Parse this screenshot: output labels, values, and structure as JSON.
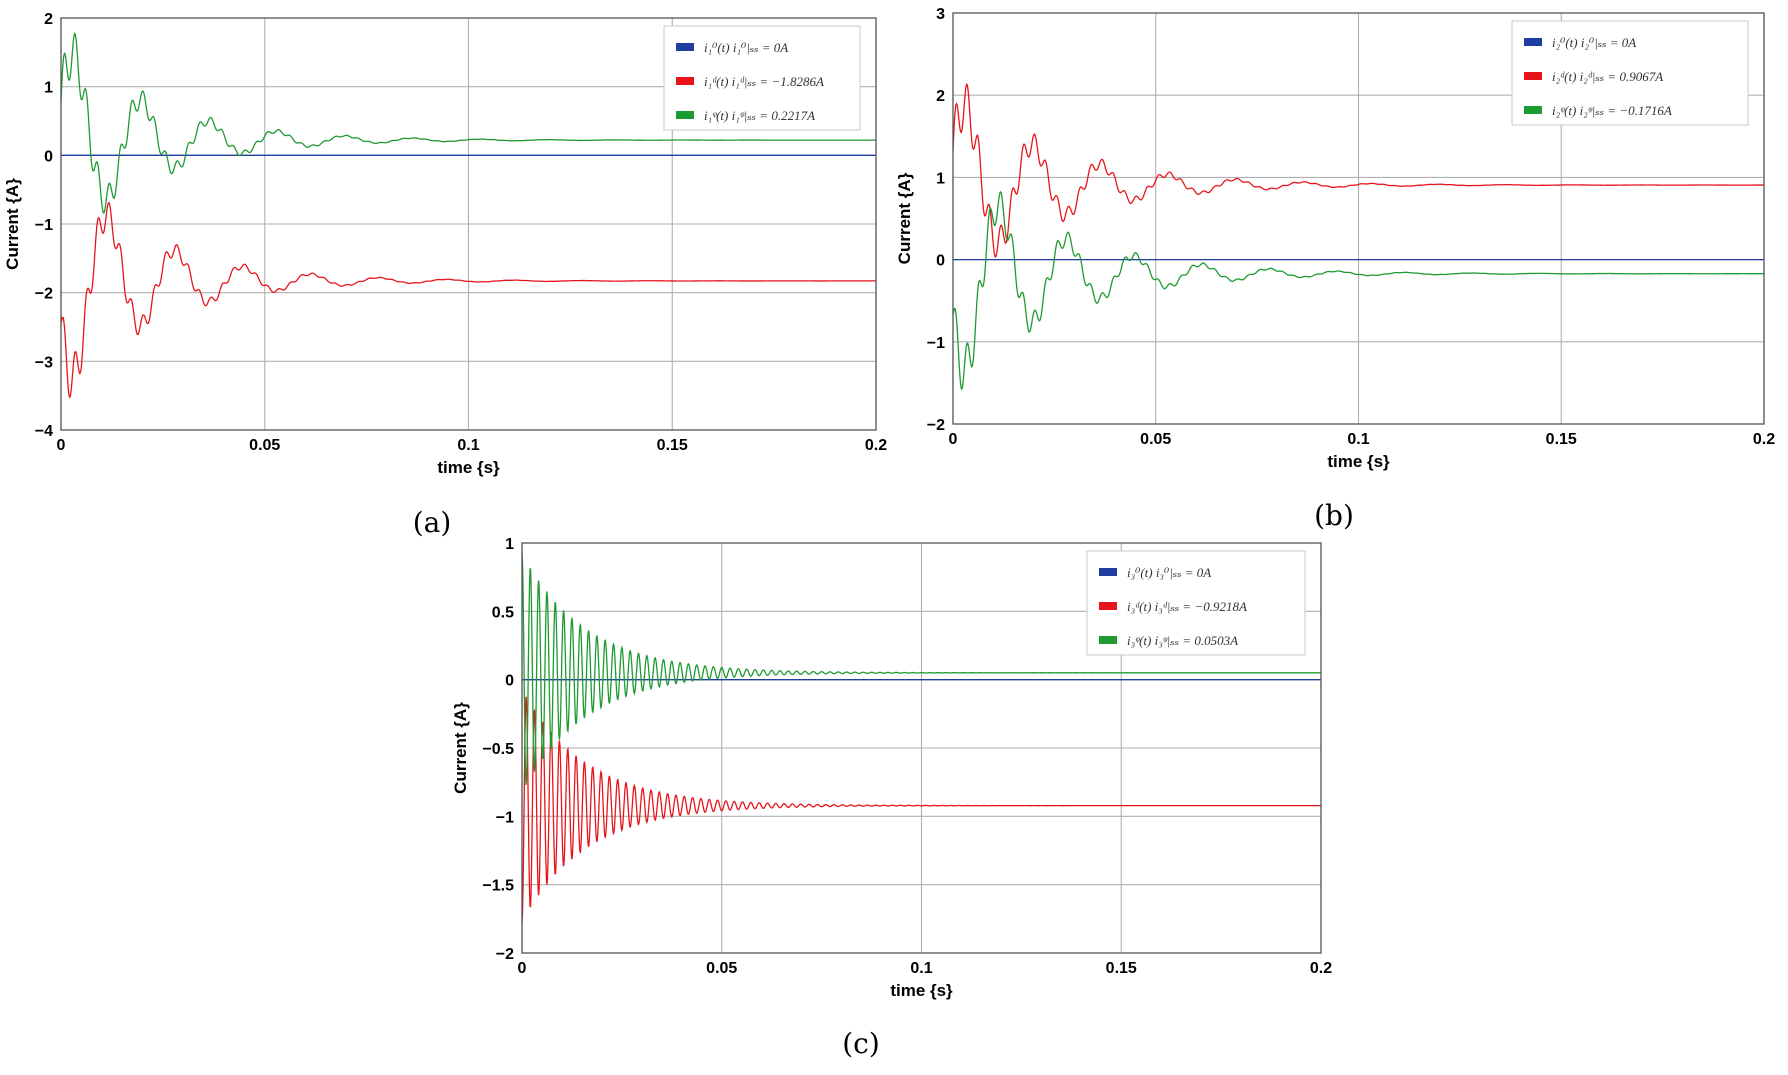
{
  "chart_data": [
    {
      "type": "line",
      "panel": "(a)",
      "title": "",
      "xlabel": "time {s}",
      "ylabel": "Current {A}",
      "xlim": [
        0,
        0.2
      ],
      "ylim": [
        -4,
        2
      ],
      "xticks": [
        0,
        0.05,
        0.1,
        0.15,
        0.2
      ],
      "xtick_labels": [
        "0",
        "0.05",
        "0.1",
        "0.15",
        "0.2"
      ],
      "yticks": [
        -4,
        -3,
        -2,
        -1,
        0,
        1,
        2
      ],
      "ytick_labels": [
        "−4",
        "−3",
        "−2",
        "−1",
        "0",
        "1",
        "2"
      ],
      "grid": true,
      "legend_position": "top-right",
      "series": [
        {
          "name": "i_1^0",
          "legend": "i₁⁰(t)   i₁⁰|ₛₛ = 0A",
          "color": "#1f3fa0",
          "steady": 0,
          "overshoot": 0,
          "settle_tau": 0.02,
          "osc_freq": 60,
          "ripple": 0
        },
        {
          "name": "i_1^d",
          "legend": "i₁ᵈ(t)   i₁ᵈ|ₛₛ = −1.8286A",
          "color": "#e8141c",
          "steady": -1.8286,
          "overshoot": -1.6,
          "settle_tau": 0.022,
          "osc_freq": 60,
          "ripple": 0.38
        },
        {
          "name": "i_1^q",
          "legend": "i₁ᵠ(t)   i₁ᵠ|ₛₛ = 0.2217A",
          "color": "#1e9a32",
          "steady": 0.2217,
          "overshoot": 1.45,
          "settle_tau": 0.022,
          "osc_freq": 60,
          "ripple": 0.38
        }
      ]
    },
    {
      "type": "line",
      "panel": "(b)",
      "title": "",
      "xlabel": "time {s}",
      "ylabel": "Current {A}",
      "xlim": [
        0,
        0.2
      ],
      "ylim": [
        -2,
        3
      ],
      "xticks": [
        0,
        0.05,
        0.1,
        0.15,
        0.2
      ],
      "xtick_labels": [
        "0",
        "0.05",
        "0.1",
        "0.15",
        "0.2"
      ],
      "yticks": [
        -2,
        -1,
        0,
        1,
        2,
        3
      ],
      "ytick_labels": [
        "−2",
        "−1",
        "0",
        "1",
        "2",
        "3"
      ],
      "grid": true,
      "legend_position": "top-right",
      "series": [
        {
          "name": "i_2^0",
          "legend": "i₂⁰(t)   i₂⁰|ₛₛ = 0A",
          "color": "#1f3fa0",
          "steady": 0,
          "overshoot": 0,
          "settle_tau": 0.02,
          "osc_freq": 60,
          "ripple": 0
        },
        {
          "name": "i_2^d",
          "legend": "i₂ᵈ(t)   i₂ᵈ|ₛₛ = 0.9067A",
          "color": "#e8141c",
          "steady": 0.9067,
          "overshoot": 1.1,
          "settle_tau": 0.025,
          "osc_freq": 60,
          "ripple": 0.32
        },
        {
          "name": "i_2^q",
          "legend": "i₂ᵠ(t)   i₂ᵠ|ₛₛ = −0.1716A",
          "color": "#1e9a32",
          "steady": -0.1716,
          "overshoot": -1.3,
          "settle_tau": 0.025,
          "osc_freq": 60,
          "ripple": 0.32
        }
      ]
    },
    {
      "type": "line",
      "panel": "(c)",
      "title": "",
      "xlabel": "time {s}",
      "ylabel": "Current {A}",
      "xlim": [
        0,
        0.2
      ],
      "ylim": [
        -2,
        1
      ],
      "xticks": [
        0,
        0.05,
        0.1,
        0.15,
        0.2
      ],
      "xtick_labels": [
        "0",
        "0.05",
        "0.1",
        "0.15",
        "0.2"
      ],
      "yticks": [
        -2,
        -1.5,
        -1,
        -0.5,
        0,
        0.5,
        1
      ],
      "ytick_labels": [
        "−2",
        "−1.5",
        "−1",
        "−0.5",
        "0",
        "0.5",
        "1"
      ],
      "grid": true,
      "legend_position": "top-right",
      "series": [
        {
          "name": "i_3^0",
          "legend": "i₃⁰(t)   i₃⁰|ₛₛ = 0A",
          "color": "#1f3fa0",
          "steady": 0,
          "overshoot": 0,
          "settle_tau": 0.02,
          "osc_freq": 480,
          "ripple": 0
        },
        {
          "name": "i_3^d",
          "legend": "i₃ᵈ(t)   i₃ᵈ|ₛₛ = −0.9218A",
          "color": "#e8141c",
          "steady": -0.9218,
          "overshoot": 0.9,
          "settle_tau": 0.016,
          "osc_freq": 480,
          "ripple": 0
        },
        {
          "name": "i_3^q",
          "legend": "i₃ᵠ(t)   i₃ᵠ|ₛₛ = 0.0503A",
          "color": "#1e9a32",
          "steady": 0.0503,
          "overshoot": 0.88,
          "settle_tau": 0.016,
          "osc_freq": 480,
          "ripple": 0
        }
      ]
    }
  ]
}
